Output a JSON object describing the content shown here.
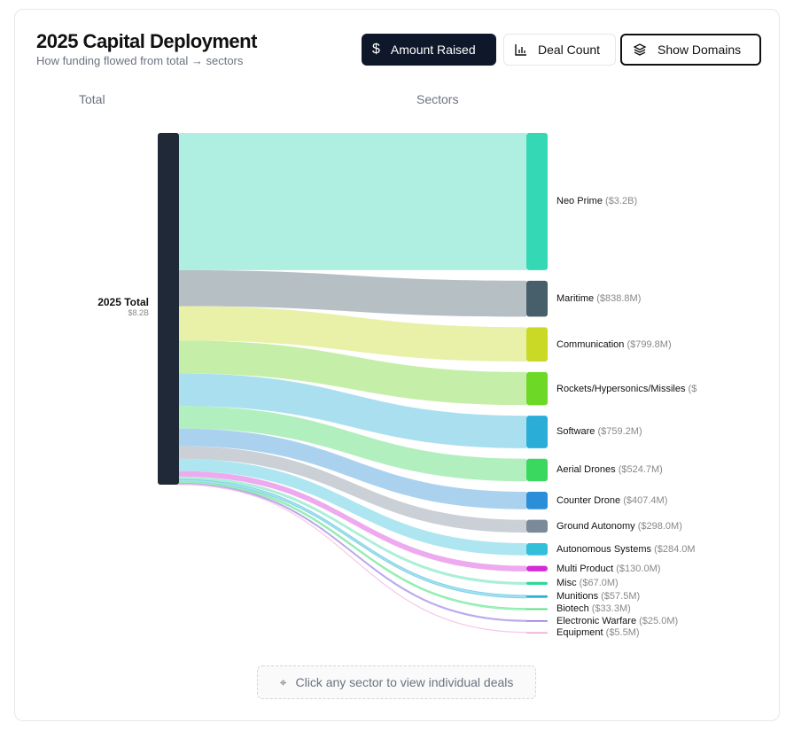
{
  "header": {
    "title": "2025 Capital Deployment",
    "subtitle": "How funding flowed from total → sectors"
  },
  "toolbar": {
    "amount_label": "Amount Raised",
    "deal_label": "Deal Count",
    "domains_label": "Show Domains"
  },
  "columns": {
    "left": "Total",
    "right": "Sectors"
  },
  "hint": "Click any sector to view individual deals",
  "chart_data": {
    "type": "sankey",
    "source": {
      "name": "2025 Total",
      "value_label": "$8.2B",
      "value": 8200,
      "color": "#1f2937"
    },
    "units": "$M",
    "sectors": [
      {
        "name": "Neo Prime",
        "value": 3200,
        "value_label": "($3.2B)",
        "color": "#34d8b4"
      },
      {
        "name": "Maritime",
        "value": 838.8,
        "value_label": "($838.8M)",
        "color": "#475f6b"
      },
      {
        "name": "Communication",
        "value": 799.8,
        "value_label": "($799.8M)",
        "color": "#c9d925"
      },
      {
        "name": "Rockets/Hypersonics/Missiles",
        "value": 770,
        "value_label": "($",
        "color": "#6dd826"
      },
      {
        "name": "Software",
        "value": 759.2,
        "value_label": "($759.2M)",
        "color": "#2aaed8"
      },
      {
        "name": "Aerial Drones",
        "value": 524.7,
        "value_label": "($524.7M)",
        "color": "#3bd860"
      },
      {
        "name": "Counter Drone",
        "value": 407.4,
        "value_label": "($407.4M)",
        "color": "#2a8ed8"
      },
      {
        "name": "Ground Autonomy",
        "value": 298.0,
        "value_label": "($298.0M)",
        "color": "#7a8a99"
      },
      {
        "name": "Autonomous Systems",
        "value": 284.0,
        "value_label": "($284.0M",
        "color": "#33bfd9"
      },
      {
        "name": "Multi Product",
        "value": 130.0,
        "value_label": "($130.0M)",
        "color": "#d42ad8"
      },
      {
        "name": "Misc",
        "value": 67.0,
        "value_label": "($67.0M)",
        "color": "#2ed89a"
      },
      {
        "name": "Munitions",
        "value": 57.5,
        "value_label": "($57.5M)",
        "color": "#2ab4d8"
      },
      {
        "name": "Biotech",
        "value": 33.3,
        "value_label": "($33.3M)",
        "color": "#3ae070"
      },
      {
        "name": "Electronic Warfare",
        "value": 25.0,
        "value_label": "($25.0M)",
        "color": "#8a6ee0"
      },
      {
        "name": "Equipment",
        "value": 5.5,
        "value_label": "($5.5M)",
        "color": "#f0a0d8"
      }
    ]
  }
}
